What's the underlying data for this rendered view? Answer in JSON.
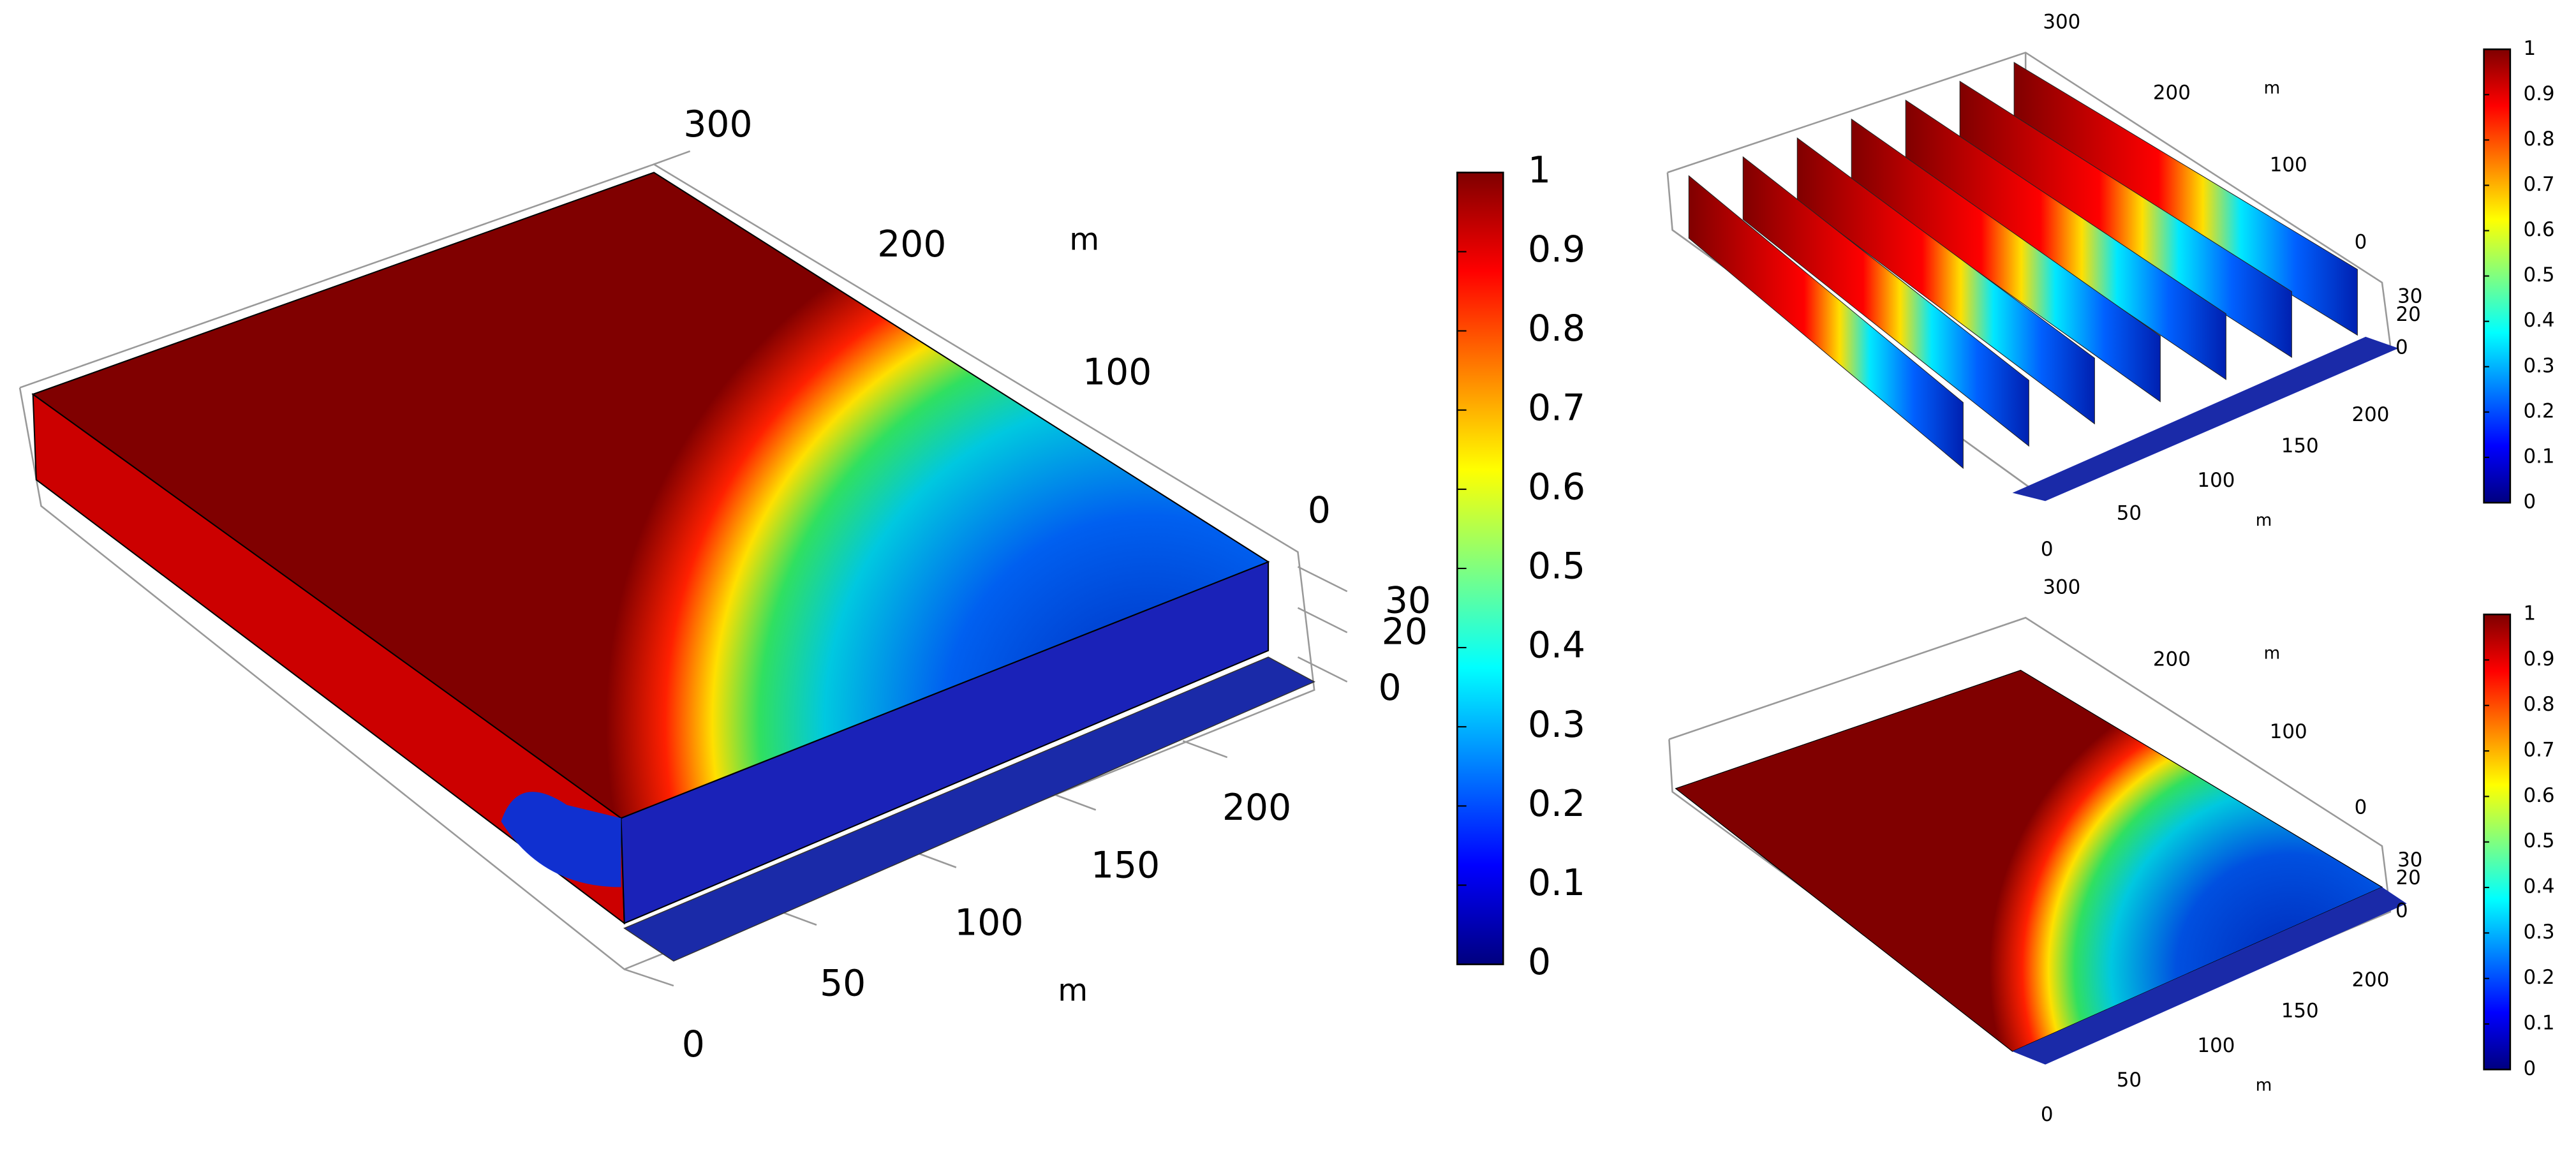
{
  "panels": [
    {
      "y_axis_ticks": [
        300,
        200,
        100,
        0
      ],
      "y_axis_unit": "m",
      "z_axis_ticks": [
        30,
        20,
        0
      ],
      "x_axis_ticks": [
        0,
        50,
        100,
        150,
        200
      ],
      "x_axis_unit": "m",
      "colorbar": {
        "clim": [
          0,
          1
        ],
        "ticks": [
          0,
          0.1,
          0.2,
          0.3,
          0.4,
          0.5,
          0.6,
          0.7,
          0.8,
          0.9,
          1
        ]
      }
    },
    {
      "y_axis_ticks": [
        300,
        200,
        100,
        0
      ],
      "y_axis_unit": "m",
      "z_axis_ticks": [
        30,
        20,
        0
      ],
      "x_axis_ticks": [
        0,
        50,
        100,
        150,
        200
      ],
      "x_axis_unit": "m",
      "colorbar": {
        "clim": [
          0,
          1
        ],
        "ticks": [
          0,
          0.1,
          0.2,
          0.3,
          0.4,
          0.5,
          0.6,
          0.7,
          0.8,
          0.9,
          1
        ]
      }
    },
    {
      "y_axis_ticks": [
        300,
        200,
        100,
        0
      ],
      "y_axis_unit": "m",
      "z_axis_ticks": [
        30,
        20,
        0
      ],
      "x_axis_ticks": [
        0,
        50,
        100,
        150,
        200
      ],
      "x_axis_unit": "m",
      "colorbar": {
        "clim": [
          0,
          1
        ],
        "ticks": [
          0,
          0.1,
          0.2,
          0.3,
          0.4,
          0.5,
          0.6,
          0.7,
          0.8,
          0.9,
          1
        ]
      }
    }
  ]
}
